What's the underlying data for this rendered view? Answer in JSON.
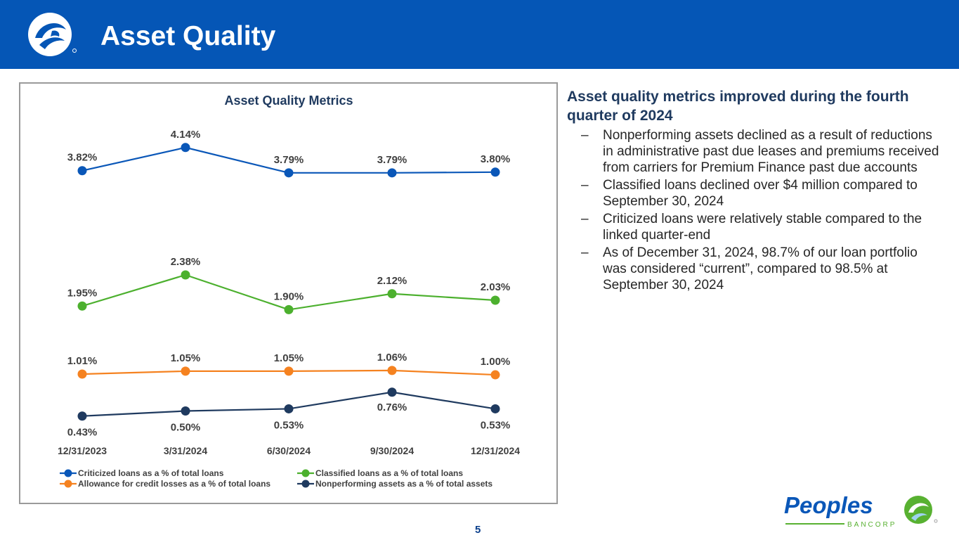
{
  "header": {
    "title": "Asset Quality"
  },
  "colors": {
    "header_bg": "#0556b6",
    "heading": "#1f3a5f",
    "brand_green": "#58b131",
    "brand_blue": "#0a57b8"
  },
  "sidebar": {
    "heading": "Asset quality metrics improved during the fourth quarter of 2024",
    "bullets": [
      "Nonperforming assets declined as a result of reductions in administrative past due leases and premiums received from carriers for Premium Finance past due accounts",
      "Classified loans declined over $4 million compared to September 30, 2024",
      "Criticized loans were relatively stable compared to the linked quarter-end",
      "As of December 31, 2024, 98.7% of our loan portfolio was considered “current”, compared to 98.5% at September 30, 2024"
    ],
    "dash": "–"
  },
  "page_number": "5",
  "brand": {
    "name": "Peoples",
    "subname": "BANCORP"
  },
  "chart_data": {
    "type": "line",
    "title": "Asset Quality Metrics",
    "categories": [
      "12/31/2023",
      "3/31/2024",
      "6/30/2024",
      "9/30/2024",
      "12/31/2024"
    ],
    "series": [
      {
        "name": "Criticized loans as a % of total loans",
        "values": [
          3.82,
          4.14,
          3.79,
          3.79,
          3.8
        ],
        "labels": [
          "3.82%",
          "4.14%",
          "3.79%",
          "3.79%",
          "3.80%"
        ],
        "color": "#0a57b8"
      },
      {
        "name": "Classified loans as a % of total loans",
        "values": [
          1.95,
          2.38,
          1.9,
          2.12,
          2.03
        ],
        "labels": [
          "1.95%",
          "2.38%",
          "1.90%",
          "2.12%",
          "2.03%"
        ],
        "color": "#4cb02e"
      },
      {
        "name": "Allowance for credit losses as a % of total loans",
        "values": [
          1.01,
          1.05,
          1.05,
          1.06,
          1.0
        ],
        "labels": [
          "1.01%",
          "1.05%",
          "1.05%",
          "1.06%",
          "1.00%"
        ],
        "color": "#f58220"
      },
      {
        "name": "Nonperforming assets as a % of total assets",
        "values": [
          0.43,
          0.5,
          0.53,
          0.76,
          0.53
        ],
        "labels": [
          "0.43%",
          "0.50%",
          "0.53%",
          "0.76%",
          "0.53%"
        ],
        "color": "#1f3a5f"
      }
    ],
    "ylim": [
      0,
      4.75
    ],
    "grid": false,
    "legend_position": "bottom"
  }
}
